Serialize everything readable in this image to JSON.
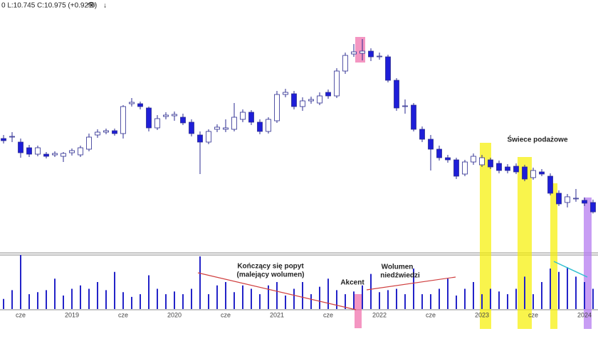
{
  "header": "0 L:10.745 C:10.975 (+0.92%)",
  "annotations": [
    "Kończący się popyt",
    "(malejący wolumen)",
    "Akcent",
    "Wolumen",
    "niedźwiedzi",
    "Świece podażowe"
  ],
  "chart_data": {
    "type": "candlestick",
    "categories": [
      null,
      null,
      "cze",
      null,
      null,
      null,
      null,
      null,
      "2019",
      null,
      null,
      null,
      null,
      null,
      "cze",
      null,
      null,
      null,
      null,
      null,
      "2020",
      null,
      null,
      null,
      null,
      null,
      "cze",
      null,
      null,
      null,
      null,
      null,
      "2021",
      null,
      null,
      null,
      null,
      null,
      "cze",
      null,
      null,
      null,
      null,
      null,
      "2022",
      null,
      null,
      null,
      null,
      null,
      "cze",
      null,
      null,
      null,
      null,
      null,
      "2023",
      null,
      null,
      null,
      null,
      null,
      "cze",
      null,
      null,
      null,
      null,
      null,
      "2024",
      null
    ],
    "open": [
      21.3,
      21.5,
      20.8,
      20.0,
      19.1,
      19.1,
      19.0,
      18.8,
      19.3,
      19.0,
      19.8,
      21.8,
      22.2,
      22.4,
      22.0,
      26.2,
      26.2,
      25.6,
      22.8,
      24.4,
      24.5,
      24.3,
      23.6,
      21.8,
      20.8,
      22.6,
      22.6,
      22.6,
      24.0,
      25.0,
      23.6,
      22.3,
      23.8,
      27.5,
      27.6,
      25.8,
      26.6,
      26.3,
      27.8,
      27.3,
      30.8,
      33.2,
      33.3,
      33.6,
      32.8,
      32.8,
      29.5,
      25.8,
      26.0,
      22.6,
      21.2,
      19.8,
      18.6,
      18.3,
      16.3,
      18.0,
      17.6,
      18.3,
      17.8,
      17.3,
      17.4,
      17.3,
      15.8,
      16.6,
      16.0,
      13.6,
      12.3,
      12.8,
      12.6,
      12.3
    ],
    "high": [
      21.8,
      22.2,
      21.3,
      20.4,
      20.3,
      19.4,
      19.5,
      19.4,
      19.9,
      20.3,
      22.0,
      22.6,
      22.7,
      22.7,
      26.0,
      27.0,
      26.5,
      25.8,
      24.6,
      25.0,
      25.1,
      24.8,
      24.0,
      22.3,
      22.6,
      23.3,
      24.0,
      26.3,
      25.4,
      25.3,
      24.0,
      24.3,
      28.0,
      28.3,
      28.0,
      27.1,
      27.2,
      27.8,
      28.2,
      31.2,
      33.4,
      34.6,
      35.3,
      34.0,
      33.4,
      33.1,
      29.8,
      26.8,
      26.3,
      23.0,
      21.8,
      20.3,
      19.0,
      18.6,
      18.3,
      19.2,
      19.0,
      18.6,
      18.2,
      17.7,
      17.8,
      17.6,
      17.2,
      17.0,
      16.4,
      14.0,
      13.5,
      14.2,
      13.0,
      12.7
    ],
    "low": [
      20.6,
      20.8,
      18.6,
      18.7,
      18.8,
      18.5,
      18.7,
      18.0,
      18.9,
      18.7,
      19.5,
      21.4,
      21.9,
      21.7,
      21.3,
      25.8,
      25.4,
      22.3,
      22.5,
      24.0,
      23.8,
      23.2,
      21.6,
      16.3,
      20.5,
      22.2,
      22.2,
      22.3,
      23.6,
      23.2,
      21.9,
      22.0,
      23.5,
      27.1,
      25.4,
      25.2,
      26.2,
      26.0,
      26.9,
      27.0,
      30.4,
      32.8,
      32.3,
      32.2,
      32.4,
      29.2,
      25.2,
      24.8,
      22.3,
      20.8,
      16.8,
      18.2,
      17.9,
      15.6,
      16.0,
      17.6,
      17.3,
      17.0,
      16.4,
      16.4,
      16.3,
      15.3,
      15.5,
      16.0,
      13.3,
      11.8,
      11.6,
      12.4,
      11.8,
      10.745
    ],
    "close": [
      21.0,
      21.6,
      19.3,
      19.1,
      20.0,
      18.8,
      19.2,
      19.2,
      19.6,
      20.0,
      21.5,
      22.2,
      22.4,
      22.0,
      25.8,
      26.4,
      25.8,
      22.8,
      24.1,
      24.6,
      24.7,
      23.5,
      22.0,
      20.8,
      22.3,
      22.9,
      22.8,
      24.3,
      25.0,
      23.6,
      22.3,
      24.0,
      27.5,
      27.8,
      25.8,
      26.6,
      26.8,
      27.3,
      27.3,
      30.8,
      33.0,
      33.5,
      33.6,
      32.8,
      32.9,
      29.5,
      25.6,
      25.9,
      22.6,
      21.2,
      19.8,
      18.6,
      18.3,
      16.0,
      18.0,
      18.8,
      18.6,
      17.3,
      16.8,
      16.8,
      16.6,
      15.6,
      16.8,
      16.3,
      13.6,
      12.1,
      13.1,
      12.9,
      12.2,
      10.975
    ],
    "volume": [
      15,
      28,
      80,
      22,
      25,
      28,
      45,
      20,
      30,
      35,
      30,
      40,
      28,
      55,
      25,
      18,
      22,
      50,
      30,
      22,
      26,
      22,
      30,
      78,
      22,
      35,
      40,
      25,
      35,
      30,
      22,
      35,
      40,
      20,
      30,
      40,
      22,
      33,
      45,
      28,
      22,
      26,
      35,
      52,
      25,
      28,
      30,
      22,
      60,
      22,
      22,
      30,
      45,
      20,
      30,
      40,
      22,
      30,
      26,
      22,
      30,
      48,
      22,
      40,
      60,
      55,
      62,
      48,
      40,
      30
    ],
    "up_color": "#ffffff",
    "down_color": "#1e1ed8",
    "edge_color": "#2a2a90",
    "volume_color": "#2323c8",
    "ylim": [
      5.3,
      39.6
    ],
    "volume_lim": [
      0,
      80
    ]
  }
}
